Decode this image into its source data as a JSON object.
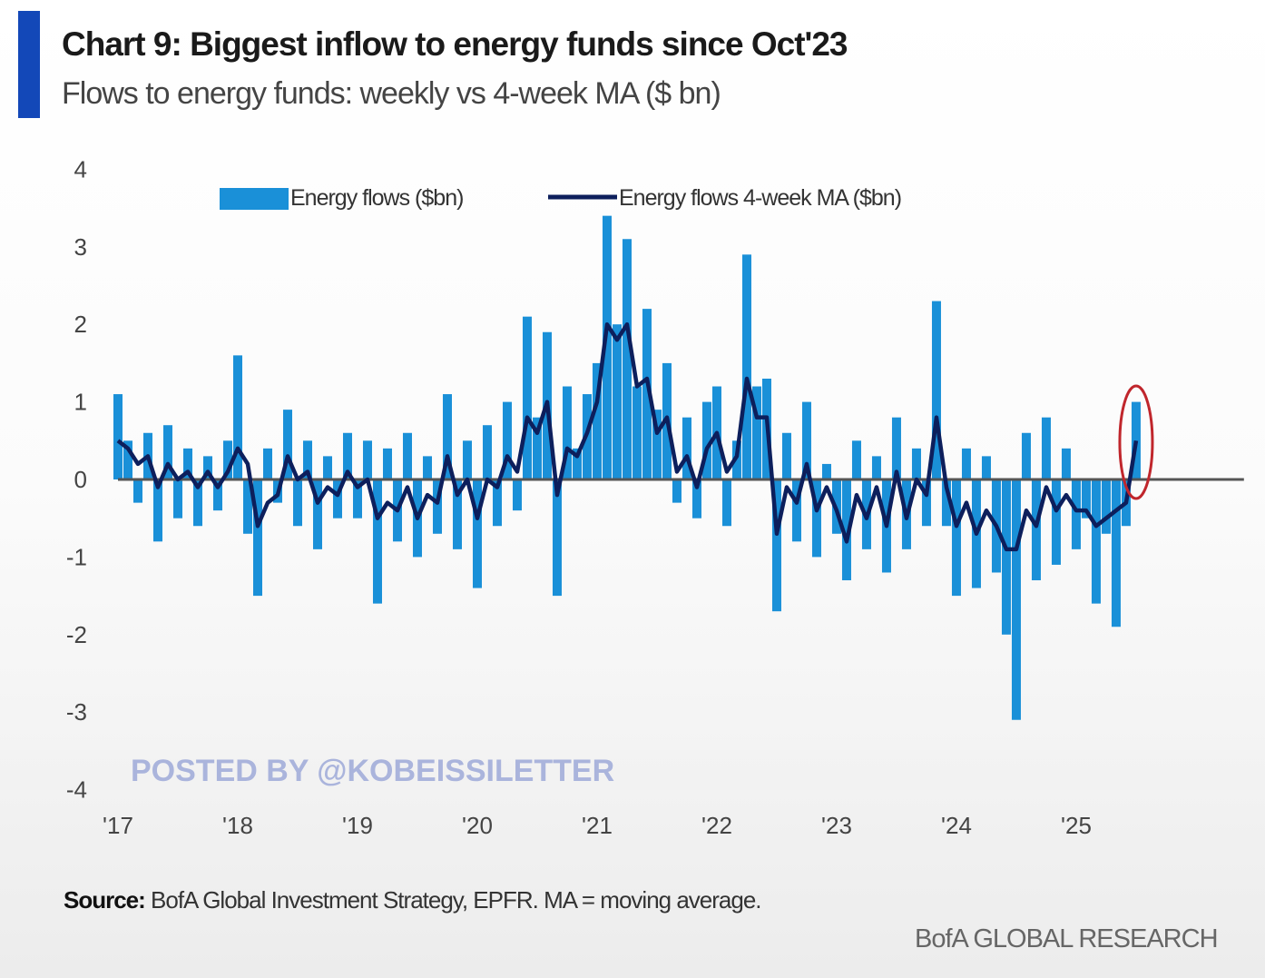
{
  "chart_data": {
    "type": "bar",
    "title": "Chart 9: Biggest inflow to energy funds since Oct'23",
    "subtitle": "Flows to energy funds: weekly vs 4-week MA ($ bn)",
    "xlabel": "",
    "ylabel": "",
    "ylim": [
      -4,
      4
    ],
    "xlim": [
      2017,
      2026.4
    ],
    "yticks": [
      "4",
      "3",
      "2",
      "1",
      "0",
      "-1",
      "-2",
      "-3",
      "-4"
    ],
    "ytick_values": [
      4,
      3,
      2,
      1,
      0,
      -1,
      -2,
      -3,
      -4
    ],
    "xticks": [
      "'17",
      "'18",
      "'19",
      "'20",
      "'21",
      "'22",
      "'23",
      "'24",
      "'25"
    ],
    "xtick_values": [
      2017,
      2018,
      2019,
      2020,
      2021,
      2022,
      2023,
      2024,
      2025
    ],
    "grid": false,
    "legend_position": "top",
    "x_start": 2017,
    "x_step_years": 0.08333,
    "series": [
      {
        "name": "Energy flows ($bn)",
        "type": "bar",
        "color": "#1a90d8",
        "values": [
          1.1,
          0.5,
          -0.3,
          0.6,
          -0.8,
          0.7,
          -0.5,
          0.4,
          -0.6,
          0.3,
          -0.4,
          0.5,
          1.6,
          -0.7,
          -1.5,
          0.4,
          -0.3,
          0.9,
          -0.6,
          0.5,
          -0.9,
          0.3,
          -0.5,
          0.6,
          -0.5,
          0.5,
          -1.6,
          0.4,
          -0.8,
          0.6,
          -1.0,
          0.3,
          -0.7,
          1.1,
          -0.9,
          0.5,
          -1.4,
          0.7,
          -0.6,
          1.0,
          -0.4,
          2.1,
          0.8,
          1.9,
          -1.5,
          1.2,
          0.4,
          1.1,
          1.5,
          3.4,
          2.0,
          3.1,
          1.2,
          2.2,
          0.9,
          1.5,
          -0.3,
          0.8,
          -0.5,
          1.0,
          1.2,
          -0.6,
          0.5,
          2.9,
          1.2,
          1.3,
          -1.7,
          0.6,
          -0.8,
          1.0,
          -1.0,
          0.2,
          -0.7,
          -1.3,
          0.5,
          -0.9,
          0.3,
          -1.2,
          0.8,
          -0.9,
          0.4,
          -0.6,
          2.3,
          -0.6,
          -1.5,
          0.4,
          -1.4,
          0.3,
          -1.2,
          -2.0,
          -3.1,
          0.6,
          -1.3,
          0.8,
          -1.1,
          0.4,
          -0.9,
          -0.5,
          -1.6,
          -0.7,
          -1.9,
          -0.6,
          1.0
        ]
      },
      {
        "name": "Energy flows 4-week MA ($bn)",
        "type": "line",
        "color": "#0d1f5c",
        "values": [
          0.5,
          0.4,
          0.2,
          0.3,
          -0.1,
          0.2,
          0.0,
          0.1,
          -0.1,
          0.1,
          -0.1,
          0.1,
          0.4,
          0.2,
          -0.6,
          -0.3,
          -0.2,
          0.3,
          0.0,
          0.1,
          -0.3,
          -0.1,
          -0.2,
          0.1,
          -0.1,
          0.0,
          -0.5,
          -0.3,
          -0.4,
          -0.1,
          -0.5,
          -0.2,
          -0.3,
          0.3,
          -0.2,
          0.0,
          -0.5,
          0.0,
          -0.1,
          0.3,
          0.1,
          0.8,
          0.6,
          1.0,
          -0.2,
          0.4,
          0.3,
          0.6,
          1.0,
          2.0,
          1.8,
          2.0,
          1.2,
          1.3,
          0.6,
          0.8,
          0.1,
          0.3,
          -0.1,
          0.4,
          0.6,
          0.1,
          0.3,
          1.3,
          0.8,
          0.8,
          -0.7,
          -0.1,
          -0.3,
          0.2,
          -0.4,
          -0.1,
          -0.4,
          -0.8,
          -0.2,
          -0.5,
          -0.1,
          -0.6,
          0.1,
          -0.5,
          0.0,
          -0.2,
          0.8,
          -0.1,
          -0.6,
          -0.3,
          -0.7,
          -0.4,
          -0.6,
          -0.9,
          -0.9,
          -0.4,
          -0.6,
          -0.1,
          -0.4,
          -0.2,
          -0.4,
          -0.4,
          -0.6,
          -0.5,
          -0.4,
          -0.3,
          0.5
        ]
      }
    ],
    "annotation": {
      "type": "ellipse",
      "color": "#c0262c",
      "target_index": 102
    }
  },
  "watermark": "POSTED BY @KOBEISSILETTER",
  "source_label": "Source:",
  "source_text": " BofA Global Investment Strategy, EPFR. MA = moving average.",
  "brand": "BofA GLOBAL RESEARCH"
}
